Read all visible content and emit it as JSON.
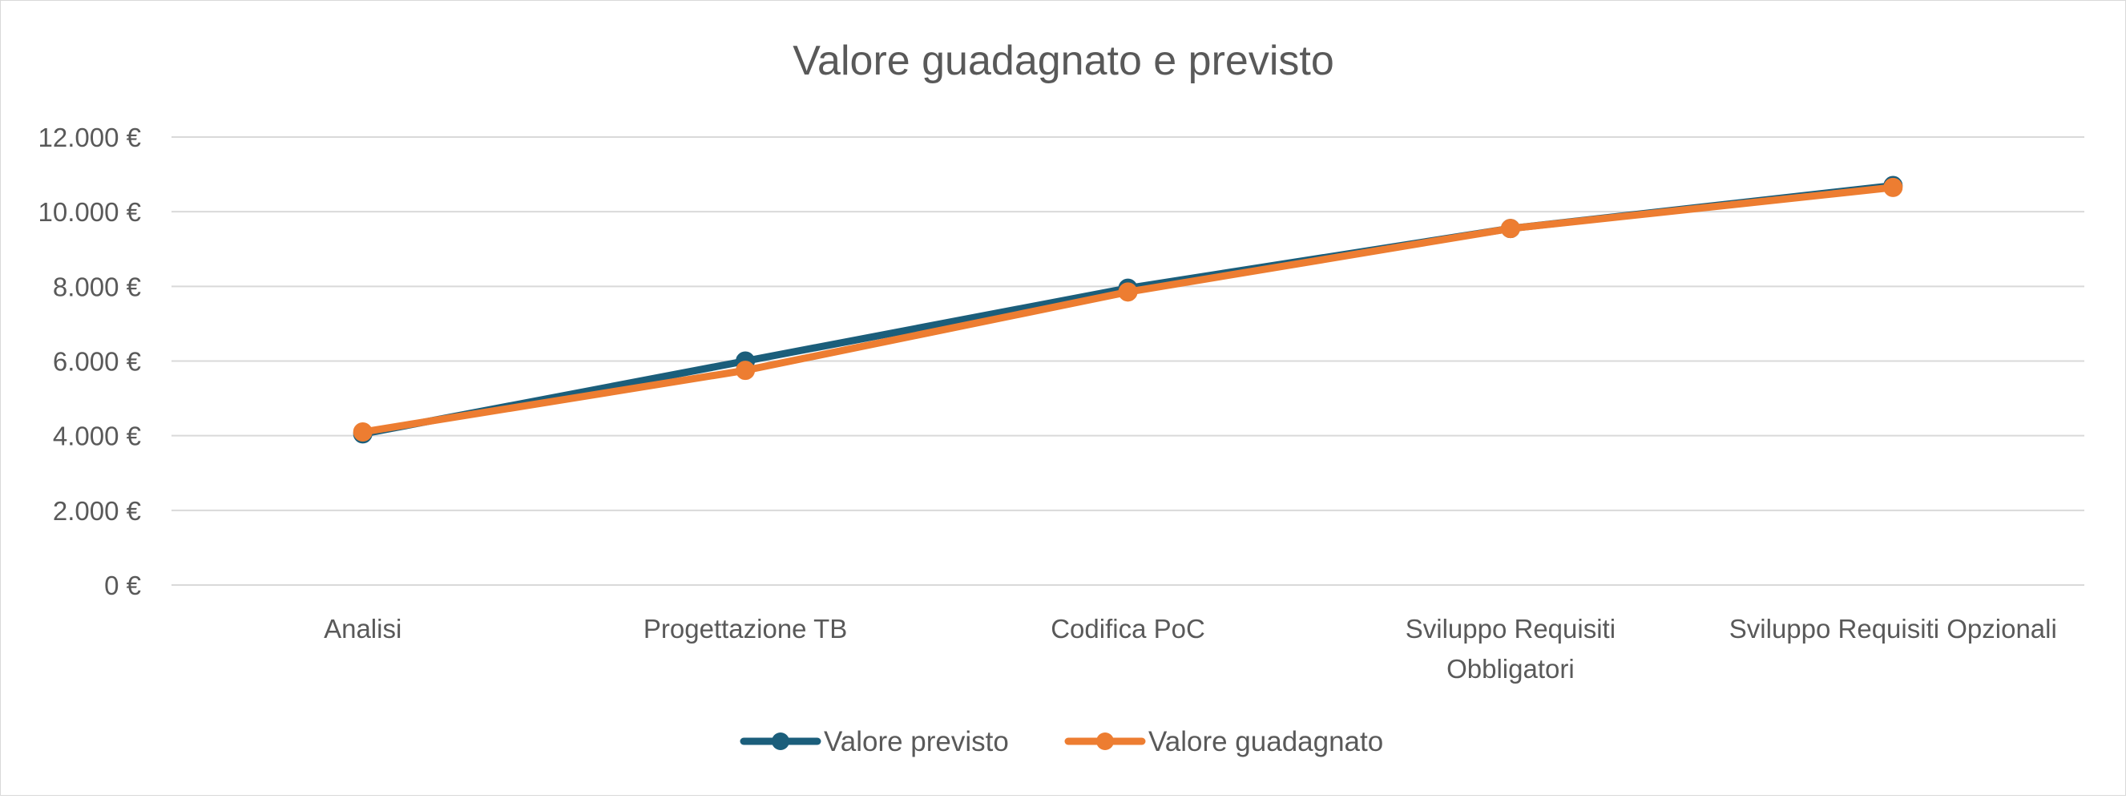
{
  "chart_data": {
    "type": "line",
    "title": "Valore guadagnato e previsto",
    "xlabel": "",
    "ylabel": "",
    "categories": [
      [
        "Analisi"
      ],
      [
        "Progettazione TB"
      ],
      [
        "Codifica PoC"
      ],
      [
        "Sviluppo Requisiti",
        "Obbligatori"
      ],
      [
        "Sviluppo Requisiti Opzionali"
      ]
    ],
    "y_ticks": [
      "0 €",
      "2.000 €",
      "4.000 €",
      "6.000 €",
      "8.000 €",
      "10.000 €",
      "12.000 €"
    ],
    "ylim": [
      0,
      12000
    ],
    "grid": true,
    "legend_position": "bottom",
    "series": [
      {
        "name": "Valore previsto",
        "color": "#1b5e7b",
        "values": [
          4050,
          6000,
          7950,
          9550,
          10700
        ]
      },
      {
        "name": "Valore guadagnato",
        "color": "#ed7d31",
        "values": [
          4100,
          5750,
          7850,
          9550,
          10650
        ]
      }
    ]
  }
}
